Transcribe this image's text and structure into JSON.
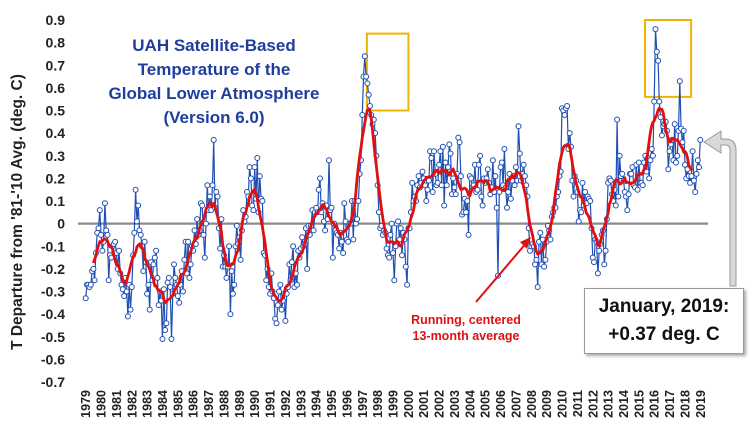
{
  "chart_data": {
    "type": "line",
    "title_lines": [
      "UAH Satellite-Based",
      "Temperature of the",
      "Global Lower Atmosphere",
      "(Version 6.0)"
    ],
    "ylabel": "T Departure from '81-'10 Avg. (deg. C)",
    "xlabel": "",
    "ylim": [
      -0.7,
      0.9
    ],
    "yticks": [
      -0.7,
      -0.6,
      -0.5,
      -0.4,
      -0.3,
      -0.2,
      -0.1,
      0,
      0.1,
      0.2,
      0.3,
      0.4,
      0.5,
      0.6,
      0.7,
      0.8,
      0.9
    ],
    "ytick_labels": [
      "-0.7",
      "-0.6",
      "-0.5",
      "-0.4",
      "-0.3",
      "-0.2",
      "-0.1",
      "0",
      "0.1",
      "0.2",
      "0.3",
      "0.4",
      "0.5",
      "0.6",
      "0.7",
      "0.8",
      "0.9"
    ],
    "x_tick_labels": [
      "1979",
      "1980",
      "1981",
      "1982",
      "1983",
      "1984",
      "1985",
      "1986",
      "1987",
      "1988",
      "1989",
      "1990",
      "1991",
      "1992",
      "1993",
      "1994",
      "1995",
      "1996",
      "1997",
      "1998",
      "1999",
      "2000",
      "2001",
      "2002",
      "2003",
      "2004",
      "2005",
      "2006",
      "2007",
      "2008",
      "2009",
      "2010",
      "2011",
      "2012",
      "2013",
      "2014",
      "2015",
      "2016",
      "2017",
      "2018",
      "2019"
    ],
    "grid": false,
    "zero_line": true,
    "series": [
      {
        "kind": "monthly",
        "color": "#1f4fb4",
        "x_start": 1979.0,
        "x_step": 0.0833333,
        "values": [
          -0.33,
          -0.27,
          -0.27,
          -0.28,
          -0.27,
          -0.21,
          -0.2,
          -0.25,
          -0.13,
          -0.04,
          -0.02,
          0.06,
          -0.05,
          -0.12,
          -0.08,
          0.09,
          -0.03,
          -0.05,
          -0.25,
          -0.14,
          -0.15,
          -0.1,
          -0.09,
          -0.08,
          -0.13,
          -0.2,
          -0.12,
          -0.22,
          -0.27,
          -0.29,
          -0.32,
          -0.24,
          -0.3,
          -0.41,
          -0.27,
          -0.38,
          -0.28,
          -0.14,
          -0.04,
          0.15,
          0.01,
          0.08,
          -0.03,
          -0.05,
          -0.1,
          -0.21,
          -0.08,
          -0.17,
          -0.31,
          -0.27,
          -0.38,
          -0.17,
          -0.25,
          -0.18,
          -0.15,
          -0.12,
          -0.24,
          -0.36,
          -0.3,
          -0.34,
          -0.51,
          -0.29,
          -0.47,
          -0.44,
          -0.26,
          -0.24,
          -0.28,
          -0.51,
          -0.31,
          -0.18,
          -0.24,
          -0.27,
          -0.32,
          -0.35,
          -0.27,
          -0.21,
          -0.3,
          -0.16,
          -0.08,
          -0.22,
          -0.08,
          -0.24,
          -0.18,
          -0.1,
          -0.12,
          -0.03,
          -0.09,
          0.02,
          -0.05,
          -0.03,
          0.09,
          0.08,
          -0.05,
          -0.15,
          0.0,
          0.17,
          0.06,
          0.12,
          0.06,
          0.17,
          0.37,
          0.07,
          0.14,
          0.12,
          -0.02,
          -0.11,
          0.02,
          -0.19,
          -0.14,
          -0.19,
          -0.24,
          -0.19,
          -0.1,
          -0.4,
          -0.21,
          -0.31,
          -0.27,
          -0.1,
          -0.01,
          -0.09,
          -0.06,
          -0.16,
          -0.03,
          0.06,
          0.01,
          0.03,
          0.14,
          0.12,
          0.25,
          0.2,
          0.08,
          0.06,
          0.25,
          0.11,
          0.29,
          0.05,
          0.21,
          0.11,
          0.1,
          -0.13,
          -0.14,
          -0.25,
          -0.2,
          -0.28,
          -0.31,
          -0.22,
          -0.3,
          -0.33,
          -0.42,
          -0.44,
          -0.36,
          -0.3,
          -0.27,
          -0.38,
          -0.34,
          -0.31,
          -0.43,
          -0.31,
          -0.28,
          -0.18,
          -0.25,
          -0.17,
          -0.1,
          -0.28,
          -0.22,
          -0.27,
          -0.12,
          -0.15,
          -0.11,
          -0.06,
          -0.1,
          -0.09,
          -0.02,
          -0.2,
          -0.01,
          -0.05,
          -0.01,
          0.06,
          -0.03,
          0.05,
          0.07,
          0.05,
          0.15,
          0.2,
          0.05,
          0.09,
          0.01,
          -0.03,
          0.08,
          0.02,
          0.28,
          0.06,
          0.07,
          -0.15,
          0.0,
          -0.03,
          -0.04,
          -0.05,
          -0.11,
          -0.04,
          -0.08,
          -0.13,
          0.09,
          0.01,
          -0.07,
          -0.08,
          0.0,
          0.0,
          0.1,
          -0.07,
          0.1,
          0.0,
          0.02,
          0.1,
          0.22,
          0.28,
          0.48,
          0.65,
          0.74,
          0.65,
          0.62,
          0.57,
          0.52,
          0.48,
          0.44,
          0.46,
          0.4,
          0.3,
          0.17,
          0.05,
          -0.02,
          -0.01,
          -0.05,
          -0.03,
          -0.04,
          -0.11,
          -0.14,
          -0.15,
          -0.05,
          0.0,
          -0.13,
          -0.25,
          -0.1,
          0.0,
          0.01,
          -0.07,
          -0.02,
          -0.14,
          -0.04,
          -0.07,
          -0.19,
          -0.27,
          -0.02,
          -0.02,
          0.05,
          0.18,
          0.1,
          0.12,
          0.1,
          0.17,
          0.21,
          0.16,
          0.18,
          0.23,
          0.2,
          0.17,
          0.1,
          0.15,
          0.19,
          0.32,
          0.29,
          0.14,
          0.32,
          0.22,
          0.17,
          0.18,
          0.26,
          0.32,
          0.17,
          0.34,
          0.08,
          0.27,
          0.17,
          0.25,
          0.35,
          0.31,
          0.13,
          0.2,
          0.16,
          0.13,
          0.22,
          0.38,
          0.36,
          0.21,
          0.04,
          0.05,
          0.11,
          0.05,
          0.1,
          -0.05,
          0.21,
          0.2,
          0.16,
          0.17,
          0.26,
          0.14,
          0.15,
          0.26,
          0.3,
          0.12,
          0.08,
          0.2,
          0.18,
          0.2,
          0.24,
          0.18,
          0.13,
          0.16,
          0.28,
          0.14,
          0.21,
          0.07,
          -0.23,
          0.14,
          0.25,
          0.27,
          0.17,
          0.33,
          0.16,
          0.07,
          0.14,
          0.22,
          0.11,
          0.19,
          0.21,
          0.17,
          0.25,
          0.19,
          0.43,
          0.31,
          0.19,
          0.22,
          0.26,
          0.21,
          0.17,
          0.12,
          -0.02,
          -0.12,
          -0.1,
          -0.09,
          -0.1,
          -0.18,
          -0.16,
          -0.28,
          -0.08,
          -0.04,
          -0.18,
          -0.07,
          -0.19,
          -0.16,
          -0.08,
          -0.01,
          -0.03,
          -0.07,
          0.03,
          0.05,
          0.07,
          0.07,
          0.12,
          0.14,
          0.21,
          0.23,
          0.51,
          0.5,
          0.48,
          0.51,
          0.52,
          0.33,
          0.4,
          0.34,
          0.19,
          0.12,
          0.21,
          0.19,
          0.14,
          0.01,
          0.06,
          0.05,
          0.18,
          0.08,
          0.14,
          0.09,
          0.12,
          0.11,
          0.1,
          -0.02,
          -0.15,
          -0.17,
          -0.07,
          -0.08,
          -0.22,
          -0.12,
          -0.09,
          -0.05,
          -0.03,
          -0.18,
          -0.12,
          0.02,
          0.18,
          0.2,
          0.19,
          0.13,
          0.1,
          0.15,
          0.08,
          0.46,
          0.12,
          0.3,
          0.21,
          0.22,
          0.19,
          0.14,
          0.12,
          0.06,
          0.13,
          0.22,
          0.22,
          0.25,
          0.17,
          0.16,
          0.26,
          0.15,
          0.27,
          0.18,
          0.18,
          0.17,
          0.27,
          0.3,
          0.23,
          0.29,
          0.2,
          0.28,
          0.33,
          0.3,
          0.54,
          0.86,
          0.76,
          0.72,
          0.54,
          0.47,
          0.39,
          0.43,
          0.44,
          0.45,
          0.41,
          0.24,
          0.32,
          0.35,
          0.37,
          0.28,
          0.44,
          0.27,
          0.3,
          0.41,
          0.63,
          0.42,
          0.36,
          0.41,
          0.26,
          0.2,
          0.24,
          0.21,
          0.18,
          0.21,
          0.32,
          0.19,
          0.14,
          0.22,
          0.28,
          0.25,
          0.37
        ]
      },
      {
        "kind": "running_13_month_mean",
        "color": "#e01010",
        "label_lines": [
          "Running, centered",
          "13-month average"
        ]
      }
    ],
    "annotations": {
      "highlight_boxes": [
        "1998 peak",
        "2016 peak"
      ],
      "callout_lines": [
        "January, 2019:",
        "+0.37 deg. C"
      ]
    }
  }
}
